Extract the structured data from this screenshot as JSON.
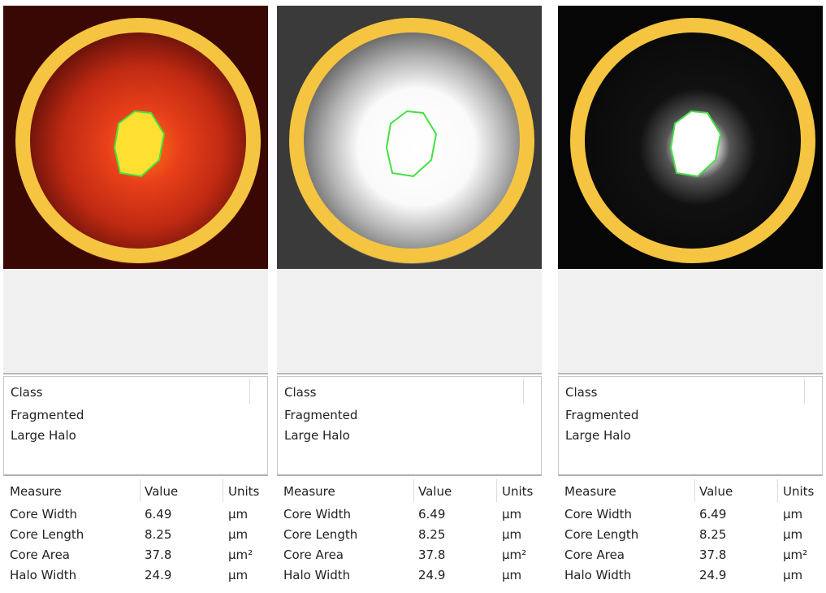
{
  "panels": [
    {
      "class_table": {
        "header": "Class",
        "rows": [
          "Fragmented",
          "Large Halo"
        ]
      },
      "measure_table": {
        "headers": [
          "Measure",
          "Value",
          "Units"
        ],
        "rows": [
          [
            "Core Width",
            6.49,
            "µm"
          ],
          [
            "Core Length",
            8.25,
            "µm"
          ],
          [
            "Core Area",
            37.8,
            "µm²"
          ],
          [
            "Halo Width",
            24.9,
            "µm"
          ]
        ]
      }
    },
    {
      "class_table": {
        "header": "Class",
        "rows": [
          "Fragmented",
          "Large Halo"
        ]
      },
      "measure_table": {
        "headers": [
          "Measure",
          "Value",
          "Units"
        ],
        "rows": [
          [
            "Core Width",
            6.49,
            "µm"
          ],
          [
            "Core Length",
            8.25,
            "µm"
          ],
          [
            "Core Area",
            37.8,
            "µm²"
          ],
          [
            "Halo Width",
            24.9,
            "µm"
          ]
        ]
      }
    },
    {
      "class_table": {
        "header": "Class",
        "rows": [
          "Fragmented",
          "Large Halo"
        ]
      },
      "measure_table": {
        "headers": [
          "Measure",
          "Value",
          "Units"
        ],
        "rows": [
          [
            "Core Width",
            6.49,
            "µm"
          ],
          [
            "Core Length",
            8.25,
            "µm"
          ],
          [
            "Core Area",
            37.8,
            "µm²"
          ],
          [
            "Halo Width",
            24.9,
            "µm"
          ]
        ]
      }
    }
  ]
}
